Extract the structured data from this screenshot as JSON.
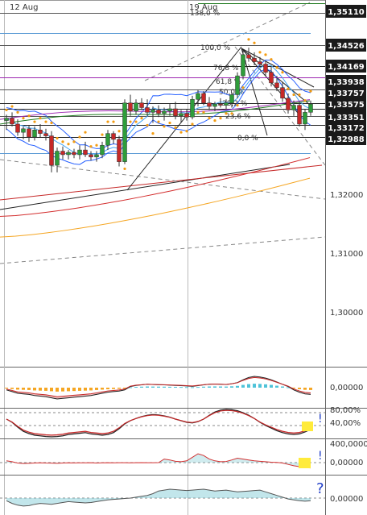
{
  "chart_data": [
    {
      "type": "candlestick",
      "x_labels": [
        "12 Aug",
        "19 Aug"
      ],
      "price_labels": [
        "1,35110",
        "1,34526",
        "1,34169",
        "1,33938",
        "1,33757",
        "1,33575",
        "1,33351",
        "1,33172",
        "1,32988"
      ],
      "axis_ticks": [
        "1,32000",
        "1,31000",
        "1,30000"
      ],
      "fib_labels": [
        "138,0 %",
        "100,0 %",
        "76,8 %",
        "61,8 %",
        "50,0 %",
        "38,2 %",
        "23,6 %",
        "0,0 %"
      ],
      "ylim": [
        1.29,
        1.354
      ],
      "candles": [
        [
          1.3328,
          1.3338,
          1.3312,
          1.3332
        ],
        [
          1.3332,
          1.3342,
          1.3318,
          1.3322
        ],
        [
          1.3322,
          1.333,
          1.3302,
          1.3308
        ],
        [
          1.3308,
          1.3318,
          1.3296,
          1.3314
        ],
        [
          1.3314,
          1.332,
          1.3292,
          1.33
        ],
        [
          1.33,
          1.3318,
          1.3294,
          1.3312
        ],
        [
          1.3312,
          1.3322,
          1.33,
          1.3306
        ],
        [
          1.3306,
          1.3314,
          1.3294,
          1.3302
        ],
        [
          1.3302,
          1.331,
          1.324,
          1.3252
        ],
        [
          1.3252,
          1.3282,
          1.324,
          1.3276
        ],
        [
          1.3276,
          1.3284,
          1.3262,
          1.327
        ],
        [
          1.327,
          1.3278,
          1.3262,
          1.3274
        ],
        [
          1.3274,
          1.328,
          1.3264,
          1.327
        ],
        [
          1.327,
          1.3286,
          1.3262,
          1.3278
        ],
        [
          1.3278,
          1.3292,
          1.3266,
          1.327
        ],
        [
          1.327,
          1.3276,
          1.326,
          1.3266
        ],
        [
          1.3266,
          1.3276,
          1.3258,
          1.327
        ],
        [
          1.327,
          1.3292,
          1.3264,
          1.3286
        ],
        [
          1.3286,
          1.3312,
          1.3278,
          1.3306
        ],
        [
          1.3306,
          1.331,
          1.3288,
          1.3296
        ],
        [
          1.3296,
          1.3302,
          1.325,
          1.3258
        ],
        [
          1.3258,
          1.3364,
          1.3254,
          1.3358
        ],
        [
          1.3358,
          1.3372,
          1.3336,
          1.3344
        ],
        [
          1.3344,
          1.3364,
          1.3338,
          1.3358
        ],
        [
          1.3358,
          1.3366,
          1.3346,
          1.335
        ],
        [
          1.335,
          1.3364,
          1.3336,
          1.3342
        ],
        [
          1.3342,
          1.3352,
          1.3324,
          1.3346
        ],
        [
          1.3346,
          1.3354,
          1.3334,
          1.334
        ],
        [
          1.334,
          1.335,
          1.3328,
          1.3344
        ],
        [
          1.3344,
          1.3356,
          1.3336,
          1.3348
        ],
        [
          1.3348,
          1.336,
          1.333,
          1.3336
        ],
        [
          1.3336,
          1.3346,
          1.3324,
          1.334
        ],
        [
          1.334,
          1.3348,
          1.3328,
          1.3334
        ],
        [
          1.3334,
          1.337,
          1.333,
          1.3364
        ],
        [
          1.3364,
          1.338,
          1.3352,
          1.3374
        ],
        [
          1.3374,
          1.3378,
          1.3354,
          1.3358
        ],
        [
          1.3358,
          1.3368,
          1.3346,
          1.3352
        ],
        [
          1.3352,
          1.336,
          1.3344,
          1.3356
        ],
        [
          1.3356,
          1.3366,
          1.335,
          1.3354
        ],
        [
          1.3354,
          1.3364,
          1.3348,
          1.3358
        ],
        [
          1.3358,
          1.3376,
          1.335,
          1.3372
        ],
        [
          1.3372,
          1.341,
          1.3366,
          1.3404
        ],
        [
          1.3404,
          1.345,
          1.3398,
          1.344
        ],
        [
          1.344,
          1.3452,
          1.3428,
          1.3434
        ],
        [
          1.3434,
          1.3444,
          1.3422,
          1.3428
        ],
        [
          1.3428,
          1.3436,
          1.3418,
          1.3424
        ],
        [
          1.3424,
          1.343,
          1.3404,
          1.341
        ],
        [
          1.341,
          1.342,
          1.3386,
          1.3392
        ],
        [
          1.3392,
          1.3404,
          1.3378,
          1.3384
        ],
        [
          1.3384,
          1.3394,
          1.336,
          1.3366
        ],
        [
          1.3366,
          1.3374,
          1.334,
          1.3346
        ],
        [
          1.3346,
          1.3362,
          1.3336,
          1.3354
        ],
        [
          1.3354,
          1.336,
          1.3318,
          1.3322
        ],
        [
          1.3322,
          1.3348,
          1.3312,
          1.3342
        ],
        [
          1.3342,
          1.3362,
          1.3336,
          1.3356
        ]
      ],
      "moving_averages": [
        {
          "color": "#1f7a1f",
          "values": [
            1.3322,
            1.3358
          ]
        },
        {
          "color": "#9c27b0",
          "values": [
            1.333,
            1.336
          ]
        },
        {
          "color": "#d32f2f",
          "values": [
            1.3165,
            1.3265
          ]
        },
        {
          "color": "#f5a623",
          "values": [
            1.313,
            1.323
          ]
        }
      ]
    },
    {
      "type": "histogram",
      "axis_ticks": [
        "0,00000"
      ],
      "values": [
        -0.2,
        -0.35,
        -0.5,
        -0.55,
        -0.6,
        -0.7,
        -0.75,
        -0.8,
        -0.9,
        -1.0,
        -0.95,
        -0.9,
        -0.85,
        -0.8,
        -0.75,
        -0.7,
        -0.6,
        -0.5,
        -0.4,
        -0.35,
        -0.3,
        -0.2,
        0.1,
        0.2,
        0.25,
        0.3,
        0.28,
        0.26,
        0.25,
        0.22,
        0.2,
        0.18,
        0.15,
        0.12,
        0.18,
        0.25,
        0.3,
        0.32,
        0.3,
        0.28,
        0.35,
        0.45,
        0.7,
        0.9,
        1.0,
        0.95,
        0.85,
        0.7,
        0.5,
        0.3,
        0.1,
        -0.2,
        -0.4,
        -0.55,
        -0.6
      ],
      "ylim": [
        -1.2,
        1.2
      ]
    },
    {
      "type": "oscillator",
      "axis_ticks": [
        "80,00%",
        "40,00%"
      ],
      "levels": [
        80,
        40
      ],
      "values": [
        60,
        50,
        35,
        22,
        15,
        10,
        8,
        6,
        5,
        6,
        8,
        12,
        14,
        16,
        18,
        14,
        12,
        10,
        12,
        18,
        30,
        45,
        55,
        62,
        68,
        72,
        74,
        73,
        70,
        66,
        60,
        55,
        50,
        48,
        52,
        60,
        72,
        82,
        88,
        90,
        89,
        86,
        80,
        72,
        62,
        50,
        40,
        32,
        24,
        18,
        14,
        12,
        14,
        20,
        28
      ],
      "ylim": [
        0,
        100
      ]
    },
    {
      "type": "oscillator",
      "axis_ticks": [
        "400,0000",
        "0,00000"
      ],
      "values": [
        40,
        20,
        -10,
        -20,
        -15,
        -10,
        -5,
        -10,
        -12,
        -15,
        -8,
        -5,
        -6,
        -4,
        -5,
        -3,
        -8,
        -5,
        -3,
        -4,
        -2,
        -3,
        -4,
        -2,
        0,
        -3,
        -2,
        -1,
        80,
        60,
        30,
        20,
        40,
        120,
        200,
        160,
        80,
        40,
        20,
        25,
        60,
        100,
        80,
        60,
        40,
        30,
        20,
        10,
        5,
        -10,
        -40,
        -70,
        -90,
        -110,
        -120
      ],
      "ylim": [
        -150,
        450
      ]
    },
    {
      "type": "area",
      "axis_ticks": [
        "0,00000"
      ],
      "values": [
        -0.3,
        -0.6,
        -0.8,
        -0.9,
        -0.85,
        -0.7,
        -0.6,
        -0.65,
        -0.7,
        -0.6,
        -0.5,
        -0.4,
        -0.45,
        -0.5,
        -0.55,
        -0.5,
        -0.4,
        -0.3,
        -0.2,
        -0.15,
        -0.1,
        -0.05,
        0.0,
        0.1,
        0.2,
        0.3,
        0.5,
        0.8,
        0.9,
        1.0,
        0.95,
        0.9,
        0.85,
        0.9,
        0.95,
        1.0,
        0.9,
        0.8,
        0.85,
        0.9,
        0.8,
        0.7,
        0.75,
        0.8,
        0.85,
        0.9,
        0.7,
        0.5,
        0.3,
        0.1,
        -0.1,
        -0.2,
        -0.3,
        -0.35,
        -0.3
      ],
      "ylim": [
        -1.2,
        1.2
      ]
    }
  ]
}
